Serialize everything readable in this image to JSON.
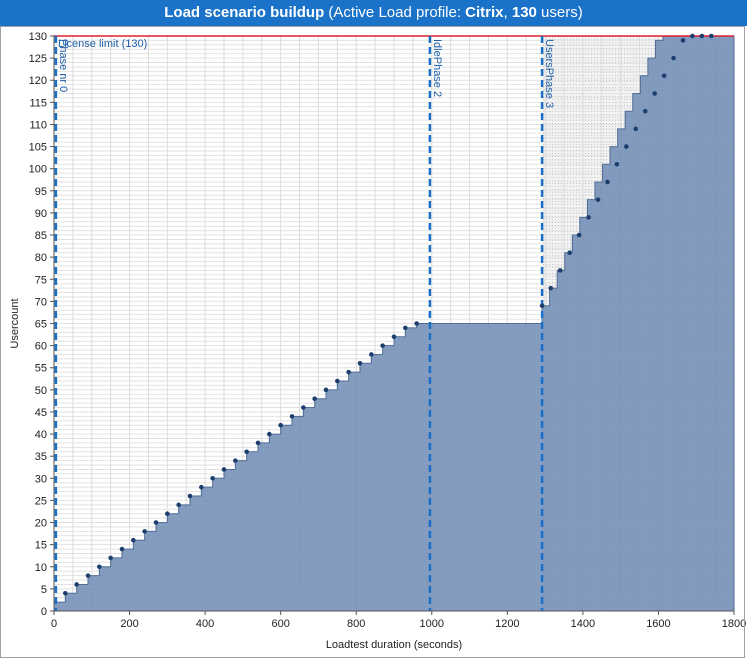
{
  "title": {
    "main": "Load scenario buildup",
    "prefix": " (Active Load profile: ",
    "profile": "Citrix",
    "sep": ", ",
    "users": "130",
    "suffix": " users)"
  },
  "chart_data": {
    "type": "area",
    "xlabel": "Loadtest duration (seconds)",
    "ylabel": "Usercount",
    "xlim": [
      0,
      1800
    ],
    "ylim": [
      0,
      130
    ],
    "xticks": [
      0,
      200,
      400,
      600,
      800,
      1000,
      1200,
      1400,
      1600,
      1800
    ],
    "yticks": [
      0,
      5,
      10,
      15,
      20,
      25,
      30,
      35,
      40,
      45,
      50,
      55,
      60,
      65,
      70,
      75,
      80,
      85,
      90,
      95,
      100,
      105,
      110,
      115,
      120,
      125,
      130
    ],
    "license_limit": {
      "label": "License limit (130)",
      "value": 130,
      "color": "#e0202c"
    },
    "phases": [
      {
        "label": "Phase nr 0",
        "x": 5
      },
      {
        "label": "IdlePhase 2",
        "x": 995
      },
      {
        "label": "UsersPhase 3",
        "x": 1292
      }
    ],
    "series": [
      {
        "x": [
          0,
          30,
          60,
          90,
          120,
          150,
          180,
          210,
          240,
          270,
          300,
          330,
          360,
          390,
          420,
          450,
          480,
          510,
          540,
          570,
          600,
          630,
          660,
          690,
          720,
          750,
          780,
          810,
          840,
          870,
          900,
          930,
          960,
          995,
          1292,
          1312,
          1332,
          1352,
          1372,
          1392,
          1412,
          1432,
          1452,
          1472,
          1492,
          1512,
          1532,
          1552,
          1572,
          1592,
          1612,
          1632,
          1652,
          1672,
          1692,
          1712,
          1732,
          1752,
          1800
        ],
        "y": [
          2,
          4,
          6,
          8,
          10,
          12,
          14,
          16,
          18,
          20,
          22,
          24,
          26,
          28,
          30,
          32,
          34,
          36,
          38,
          40,
          42,
          44,
          46,
          48,
          50,
          52,
          54,
          56,
          58,
          60,
          62,
          64,
          65,
          65,
          69,
          73,
          77,
          81,
          85,
          89,
          93,
          97,
          101,
          105,
          109,
          113,
          117,
          121,
          125,
          129,
          130,
          130,
          130,
          130,
          130,
          130,
          130,
          130,
          130
        ],
        "color": "#6f8bb4"
      }
    ],
    "markers": {
      "x": [
        30,
        60,
        90,
        120,
        150,
        180,
        210,
        240,
        270,
        300,
        330,
        360,
        390,
        420,
        450,
        480,
        510,
        540,
        570,
        600,
        630,
        660,
        690,
        720,
        750,
        780,
        810,
        840,
        870,
        900,
        930,
        960,
        1292,
        1315,
        1340,
        1365,
        1390,
        1415,
        1440,
        1465,
        1490,
        1515,
        1540,
        1565,
        1590,
        1615,
        1640,
        1665,
        1690,
        1715,
        1740
      ],
      "y": [
        4,
        6,
        8,
        10,
        12,
        14,
        16,
        18,
        20,
        22,
        24,
        26,
        28,
        30,
        32,
        34,
        36,
        38,
        40,
        42,
        44,
        46,
        48,
        50,
        52,
        54,
        56,
        58,
        60,
        62,
        64,
        65,
        69,
        73,
        77,
        81,
        85,
        89,
        93,
        97,
        101,
        105,
        109,
        113,
        117,
        121,
        125,
        129,
        130,
        130,
        130
      ]
    },
    "grid": true
  }
}
